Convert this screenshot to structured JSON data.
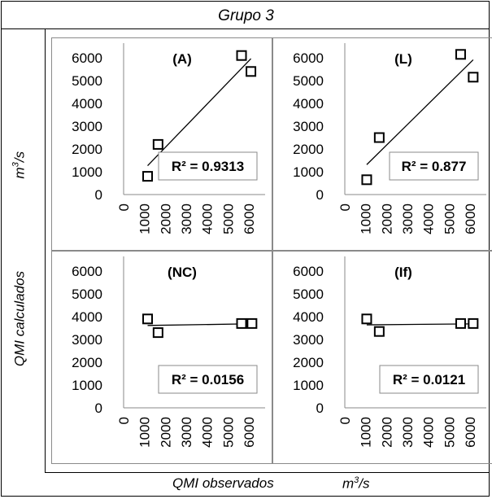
{
  "figure": {
    "title": "Grupo 3",
    "ylabel": "QMI calculados",
    "yunit": "m",
    "yunit_sup": "3",
    "yunit_tail": "/s",
    "xlabel": "QMI observados",
    "xunit": "m",
    "xunit_sup": "3",
    "xunit_tail": "/s"
  },
  "chart_data": [
    {
      "type": "scatter",
      "title": "(A)",
      "x": [
        1150,
        1650,
        5650,
        6100
      ],
      "y": [
        800,
        2200,
        6100,
        5400
      ],
      "trendline": true,
      "r2_label": "R² = 0.9313",
      "xlim": [
        0,
        6000
      ],
      "ylim": [
        0,
        6000
      ],
      "xticks": [
        0,
        1000,
        2000,
        3000,
        4000,
        5000,
        6000
      ],
      "yticks": [
        0,
        1000,
        2000,
        3000,
        4000,
        5000,
        6000
      ],
      "xlabel": "",
      "ylabel": ""
    },
    {
      "type": "scatter",
      "title": "(L)",
      "x": [
        1050,
        1650,
        5550,
        6150
      ],
      "y": [
        650,
        2500,
        6150,
        5150
      ],
      "trendline": true,
      "r2_label": "R² = 0.877",
      "xlim": [
        0,
        6000
      ],
      "ylim": [
        0,
        6000
      ],
      "xticks": [
        0,
        1000,
        2000,
        3000,
        4000,
        5000,
        6000
      ],
      "yticks": [
        0,
        1000,
        2000,
        3000,
        4000,
        5000,
        6000
      ],
      "xlabel": "",
      "ylabel": ""
    },
    {
      "type": "scatter",
      "title": "(NC)",
      "x": [
        1150,
        1650,
        5650,
        6150
      ],
      "y": [
        3900,
        3300,
        3700,
        3700
      ],
      "trendline": true,
      "r2_label": "R² = 0.0156",
      "xlim": [
        0,
        6000
      ],
      "ylim": [
        0,
        6000
      ],
      "xticks": [
        0,
        1000,
        2000,
        3000,
        4000,
        5000,
        6000
      ],
      "yticks": [
        0,
        1000,
        2000,
        3000,
        4000,
        5000,
        6000
      ],
      "xlabel": "",
      "ylabel": ""
    },
    {
      "type": "scatter",
      "title": "(If)",
      "x": [
        1050,
        1650,
        5550,
        6150
      ],
      "y": [
        3900,
        3350,
        3700,
        3700
      ],
      "trendline": true,
      "r2_label": "R² = 0.0121",
      "xlim": [
        0,
        6000
      ],
      "ylim": [
        0,
        6000
      ],
      "xticks": [
        0,
        1000,
        2000,
        3000,
        4000,
        5000,
        6000
      ],
      "yticks": [
        0,
        1000,
        2000,
        3000,
        4000,
        5000,
        6000
      ],
      "xlabel": "",
      "ylabel": ""
    }
  ]
}
